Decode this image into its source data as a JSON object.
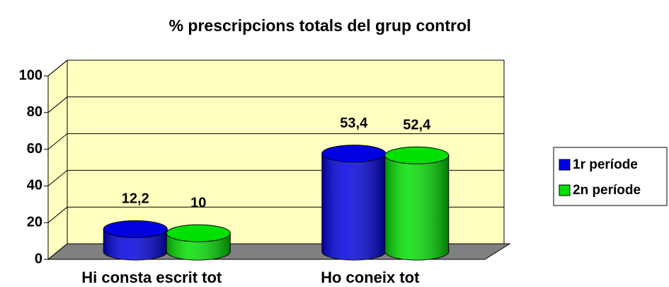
{
  "chart_data": {
    "type": "bar3d",
    "title": "% prescripcions totals del grup control",
    "categories": [
      "Hi consta escrit tot",
      "Ho coneix tot"
    ],
    "series": [
      {
        "name": "1r període",
        "color": "#0000e0",
        "values": [
          12.2,
          53.4
        ],
        "value_labels": [
          "12,2",
          "53,4"
        ]
      },
      {
        "name": "2n període",
        "color": "#00e000",
        "values": [
          10,
          52.4
        ],
        "value_labels": [
          "10",
          "52,4"
        ]
      }
    ],
    "ylim": [
      0,
      100
    ],
    "yticks": [
      0,
      20,
      40,
      60,
      80,
      100
    ],
    "grid": true,
    "wall_color": "#ffffc0",
    "floor_color": "#808080",
    "legend": "right"
  }
}
